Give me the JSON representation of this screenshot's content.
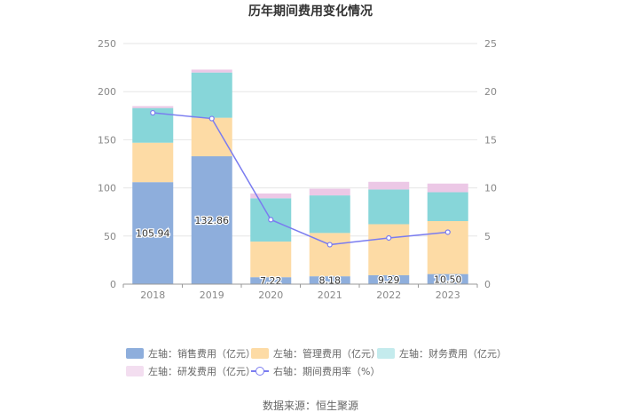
{
  "chart_data": {
    "type": "bar",
    "title": "历年期间费用变化情况",
    "categories": [
      "2018",
      "2019",
      "2020",
      "2021",
      "2022",
      "2023"
    ],
    "left_axis": {
      "ylim": [
        0,
        250
      ],
      "ticks": [
        "0",
        "50",
        "100",
        "150",
        "200",
        "250"
      ]
    },
    "right_axis": {
      "ylim": [
        0,
        25
      ],
      "ticks": [
        "0",
        "5",
        "10",
        "15",
        "20",
        "25"
      ]
    },
    "series": [
      {
        "name": "左轴：销售费用（亿元）",
        "axis": "left",
        "color": "#8eaedc",
        "values": [
          105.94,
          132.86,
          7.22,
          8.18,
          9.29,
          10.5
        ],
        "labels": [
          "105.94",
          "132.86",
          "7.22",
          "8.18",
          "9.29",
          "10.50"
        ]
      },
      {
        "name": "左轴：管理费用（亿元）",
        "axis": "left",
        "color": "#fddba5",
        "values": [
          41,
          40,
          37,
          45,
          53,
          55
        ]
      },
      {
        "name": "左轴：财务费用（亿元）",
        "axis": "left",
        "color": "#87d6d9",
        "values": [
          36,
          47,
          45,
          39,
          36,
          30
        ]
      },
      {
        "name": "左轴：研发费用（亿元）",
        "axis": "left",
        "color": "#ecc8e6",
        "values": [
          2,
          3,
          5,
          7,
          8,
          9
        ]
      },
      {
        "name": "右轴：期间费用率（%）",
        "axis": "right",
        "type": "line",
        "color": "#7a7cf0",
        "values": [
          17.8,
          17.2,
          6.7,
          4.1,
          4.8,
          5.4
        ]
      }
    ],
    "legend_position": "bottom"
  },
  "source": "数据来源：恒生聚源"
}
